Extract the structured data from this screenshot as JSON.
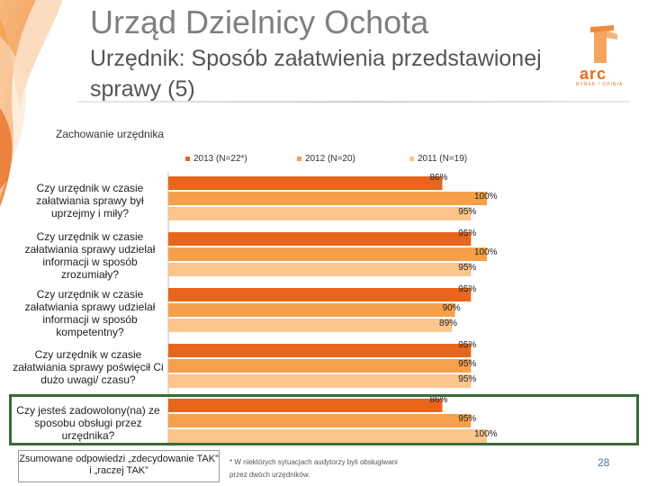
{
  "header": {
    "title": "Urząd Dzielnicy Ochota",
    "subtitle": "Urzędnik: Sposób załatwienia przedstawionej sprawy (5)",
    "logo_text": "arc",
    "logo_small": "RYNEK I OPINIA"
  },
  "chart_data": {
    "type": "bar",
    "orientation": "horizontal",
    "title": "Zachowanie urzędnika",
    "categories": [
      "Czy urzędnik w czasie załatwiania sprawy był uprzejmy i miły?",
      "Czy urzędnik w czasie załatwiania sprawy udzielał informacji w sposób zrozumiały?",
      "Czy urzędnik w czasie załatwiania sprawy udzielał informacji w sposób kompetentny?",
      "Czy urzędnik w czasie załatwiania sprawy poświęcił Ci dużo uwagi/ czasu?",
      "Czy jesteś zadowolony(na) ze sposobu obsługi przez urzędnika?"
    ],
    "series": [
      {
        "name": "2013 (N=22*)",
        "color": "#e8651c",
        "values": [
          86,
          95,
          95,
          95,
          86
        ],
        "labels": [
          "86%",
          "95%",
          "95%",
          "95%",
          "86%"
        ]
      },
      {
        "name": "2012 (N=20)",
        "color": "#f5a04a",
        "values": [
          100,
          100,
          90,
          95,
          95
        ],
        "labels": [
          "100%",
          "100%",
          "90%",
          "95%",
          "95%"
        ]
      },
      {
        "name": "2011 (N=19)",
        "color": "#fbc58c",
        "values": [
          95,
          95,
          89,
          95,
          100
        ],
        "labels": [
          "95%",
          "95%",
          "89%",
          "95%",
          "100%"
        ]
      }
    ],
    "xlim": [
      0,
      100
    ],
    "legend_position": "top"
  },
  "footer": {
    "box_text": "Zsumowane odpowiedzi „zdecydowanie TAK” i „raczej TAK”",
    "note": "* W niektórych sytuacjach audytorzy byli obsługiwani przez dwóch urzędników.",
    "page": "28"
  }
}
